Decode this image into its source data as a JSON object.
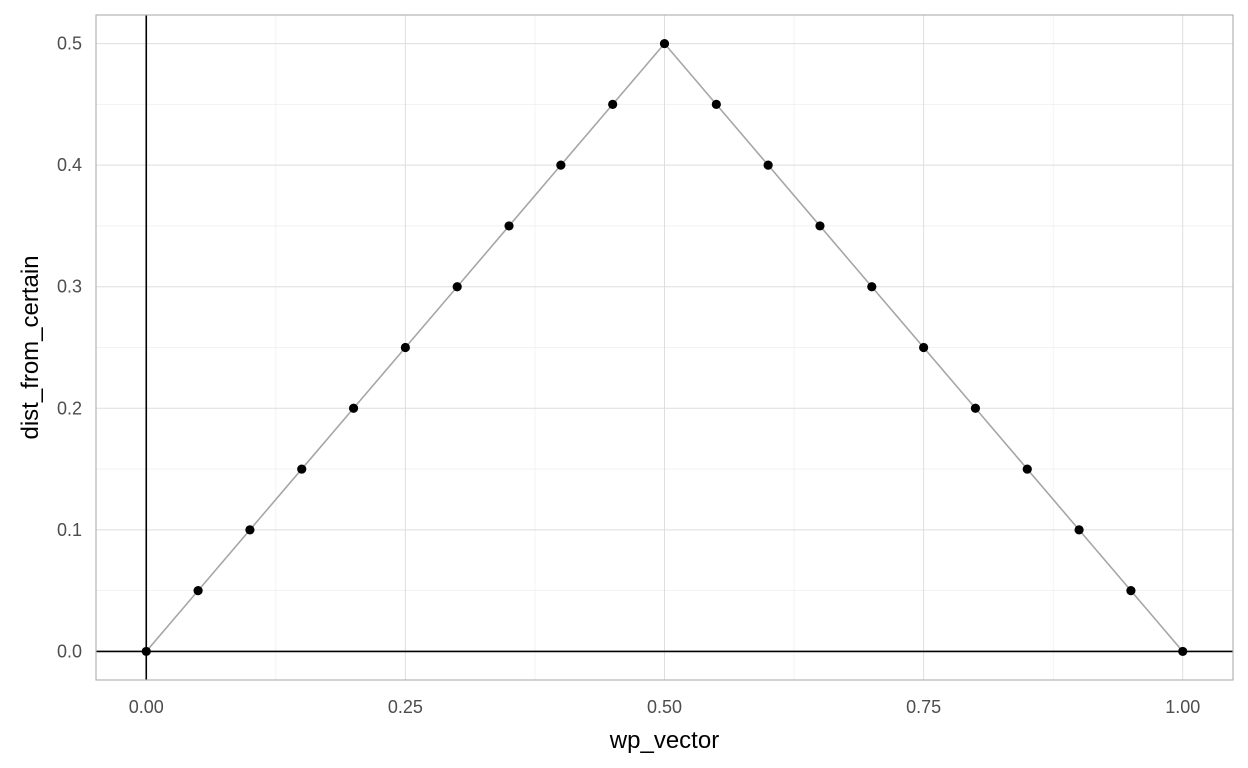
{
  "chart_data": {
    "type": "line",
    "title": "",
    "xlabel": "wp_vector",
    "ylabel": "dist_from_certain",
    "xlim": [
      -0.0485,
      1.0485
    ],
    "ylim": [
      -0.0235,
      0.5235
    ],
    "grid": true,
    "x_ticks": [
      0.0,
      0.25,
      0.5,
      0.75,
      1.0
    ],
    "x_tick_labels": [
      "0.00",
      "0.25",
      "0.50",
      "0.75",
      "1.00"
    ],
    "y_ticks": [
      0.0,
      0.1,
      0.2,
      0.3,
      0.4,
      0.5
    ],
    "y_tick_labels": [
      "0.0",
      "0.1",
      "0.2",
      "0.3",
      "0.4",
      "0.5"
    ],
    "reference_lines": {
      "vline_x": 0,
      "hline_y": 0
    },
    "series": [
      {
        "x": [
          0.0,
          0.05,
          0.1,
          0.15,
          0.2,
          0.25,
          0.3,
          0.35,
          0.4,
          0.45,
          0.5,
          0.55,
          0.6,
          0.65,
          0.7,
          0.75,
          0.8,
          0.85,
          0.9,
          0.95,
          1.0
        ],
        "values": [
          0.0,
          0.05,
          0.1,
          0.15,
          0.2,
          0.25,
          0.3,
          0.35,
          0.4,
          0.45,
          0.5,
          0.45,
          0.4,
          0.35,
          0.3,
          0.25,
          0.2,
          0.15,
          0.1,
          0.05,
          0.0
        ],
        "line_color": "#a6a6a6",
        "point_color": "#000000"
      }
    ],
    "colors": {
      "panel_border": "#b3b3b3",
      "grid_major": "#dedede",
      "grid_minor": "#efefef",
      "reference_line": "#000000"
    }
  }
}
